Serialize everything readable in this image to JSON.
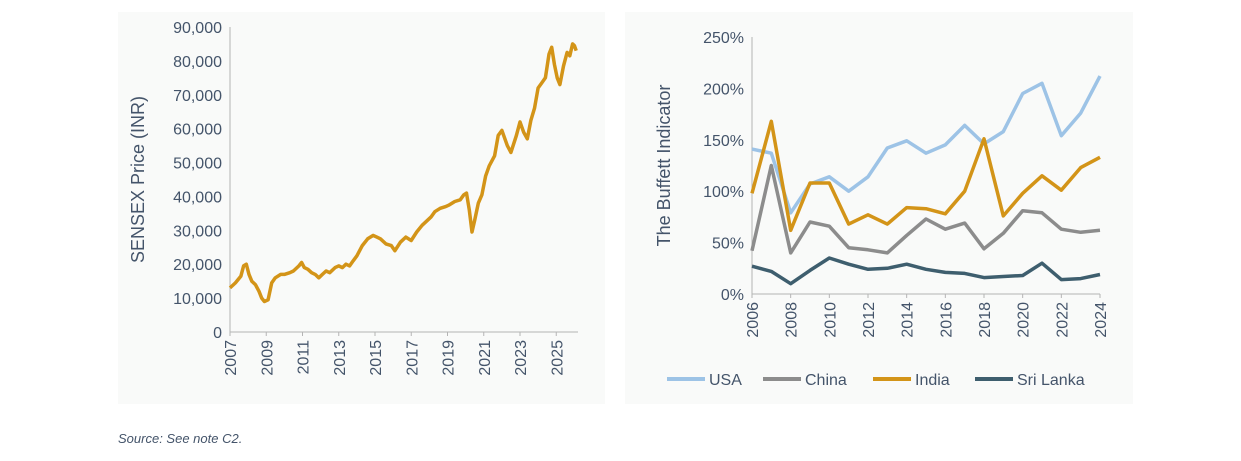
{
  "source_note": "Source: See note C2.",
  "chart_data": [
    {
      "type": "line",
      "title": "",
      "xlabel": "",
      "ylabel": "SENSEX  Price (INR)",
      "xlim": [
        2007,
        2026.2
      ],
      "ylim": [
        0,
        90000
      ],
      "x_tick_labels": [
        "2007",
        "2009",
        "2011",
        "2013",
        "2015",
        "2017",
        "2019",
        "2021",
        "2023",
        "2025"
      ],
      "y_tick_labels": [
        "0",
        "10,000",
        "20,000",
        "30,000",
        "40,000",
        "50,000",
        "60,000",
        "70,000",
        "80,000",
        "90,000"
      ],
      "grid": false,
      "series": [
        {
          "color": "#d39418",
          "x": [
            2007.0,
            2007.3,
            2007.6,
            2007.75,
            2007.9,
            2008.05,
            2008.2,
            2008.4,
            2008.6,
            2008.75,
            2008.9,
            2009.1,
            2009.3,
            2009.5,
            2009.8,
            2010.0,
            2010.3,
            2010.5,
            2010.8,
            2010.95,
            2011.1,
            2011.3,
            2011.5,
            2011.7,
            2011.9,
            2012.1,
            2012.3,
            2012.5,
            2012.8,
            2013.0,
            2013.2,
            2013.4,
            2013.6,
            2013.8,
            2014.0,
            2014.3,
            2014.6,
            2014.9,
            2015.1,
            2015.3,
            2015.6,
            2015.9,
            2016.1,
            2016.4,
            2016.7,
            2017.0,
            2017.3,
            2017.6,
            2017.9,
            2018.1,
            2018.3,
            2018.6,
            2018.9,
            2019.1,
            2019.4,
            2019.7,
            2019.9,
            2020.05,
            2020.2,
            2020.35,
            2020.5,
            2020.7,
            2020.9,
            2021.1,
            2021.3,
            2021.6,
            2021.8,
            2022.0,
            2022.3,
            2022.5,
            2022.8,
            2023.0,
            2023.2,
            2023.4,
            2023.6,
            2023.8,
            2024.0,
            2024.2,
            2024.4,
            2024.6,
            2024.75,
            2024.9,
            2025.05,
            2025.2,
            2025.4,
            2025.6,
            2025.75,
            2025.9,
            2026.0,
            2026.1
          ],
          "y": [
            13000,
            14500,
            16500,
            19500,
            20000,
            17000,
            15000,
            14000,
            12000,
            10000,
            9000,
            9500,
            14500,
            16000,
            17000,
            17000,
            17500,
            18000,
            19500,
            20500,
            19000,
            18500,
            17500,
            17000,
            16000,
            17000,
            18000,
            17500,
            19000,
            19500,
            19000,
            20000,
            19500,
            21000,
            22500,
            25500,
            27500,
            28500,
            28000,
            27500,
            26000,
            25500,
            24000,
            26500,
            28000,
            27000,
            29500,
            31500,
            33000,
            34000,
            35500,
            36500,
            37000,
            37500,
            38500,
            39000,
            40500,
            41000,
            36000,
            29500,
            33000,
            38000,
            40500,
            46000,
            49000,
            52000,
            58000,
            59500,
            55000,
            53000,
            58000,
            62000,
            59000,
            57000,
            62500,
            66000,
            72000,
            73500,
            75000,
            82000,
            84000,
            79000,
            75000,
            73000,
            78500,
            82500,
            81500,
            85000,
            84500,
            83000
          ]
        }
      ]
    },
    {
      "type": "line",
      "title": "",
      "xlabel": "",
      "ylabel": "The Buffett Indicator",
      "xlim": [
        2006,
        2024
      ],
      "ylim": [
        0,
        250
      ],
      "x_tick_labels": [
        "2006",
        "2008",
        "2010",
        "2012",
        "2014",
        "2016",
        "2018",
        "2020",
        "2022",
        "2024"
      ],
      "y_tick_labels": [
        "0%",
        "50%",
        "100%",
        "150%",
        "200%",
        "250%"
      ],
      "grid": false,
      "legend_position": "bottom",
      "categories": [
        2006,
        2007,
        2008,
        2009,
        2010,
        2011,
        2012,
        2013,
        2014,
        2015,
        2016,
        2017,
        2018,
        2019,
        2020,
        2021,
        2022,
        2023,
        2024
      ],
      "series": [
        {
          "name": "USA",
          "color": "#9dc3e6",
          "values": [
            141,
            137,
            79,
            107,
            114,
            100,
            114,
            142,
            149,
            137,
            145,
            164,
            146,
            158,
            195,
            205,
            154,
            176,
            212
          ]
        },
        {
          "name": "China",
          "color": "#8c8c8c",
          "values": [
            42,
            125,
            40,
            70,
            66,
            45,
            43,
            40,
            57,
            73,
            63,
            69,
            44,
            59,
            81,
            79,
            63,
            60,
            62
          ]
        },
        {
          "name": "India",
          "color": "#d39418",
          "values": [
            98,
            168,
            62,
            108,
            108,
            68,
            77,
            68,
            84,
            83,
            78,
            100,
            151,
            76,
            98,
            115,
            101,
            123,
            133
          ]
        },
        {
          "name": "Sri Lanka",
          "color": "#3e5e6e",
          "values": [
            27,
            22,
            10,
            23,
            35,
            29,
            24,
            25,
            29,
            24,
            21,
            20,
            16,
            17,
            18,
            30,
            14,
            15,
            19
          ]
        }
      ]
    }
  ]
}
